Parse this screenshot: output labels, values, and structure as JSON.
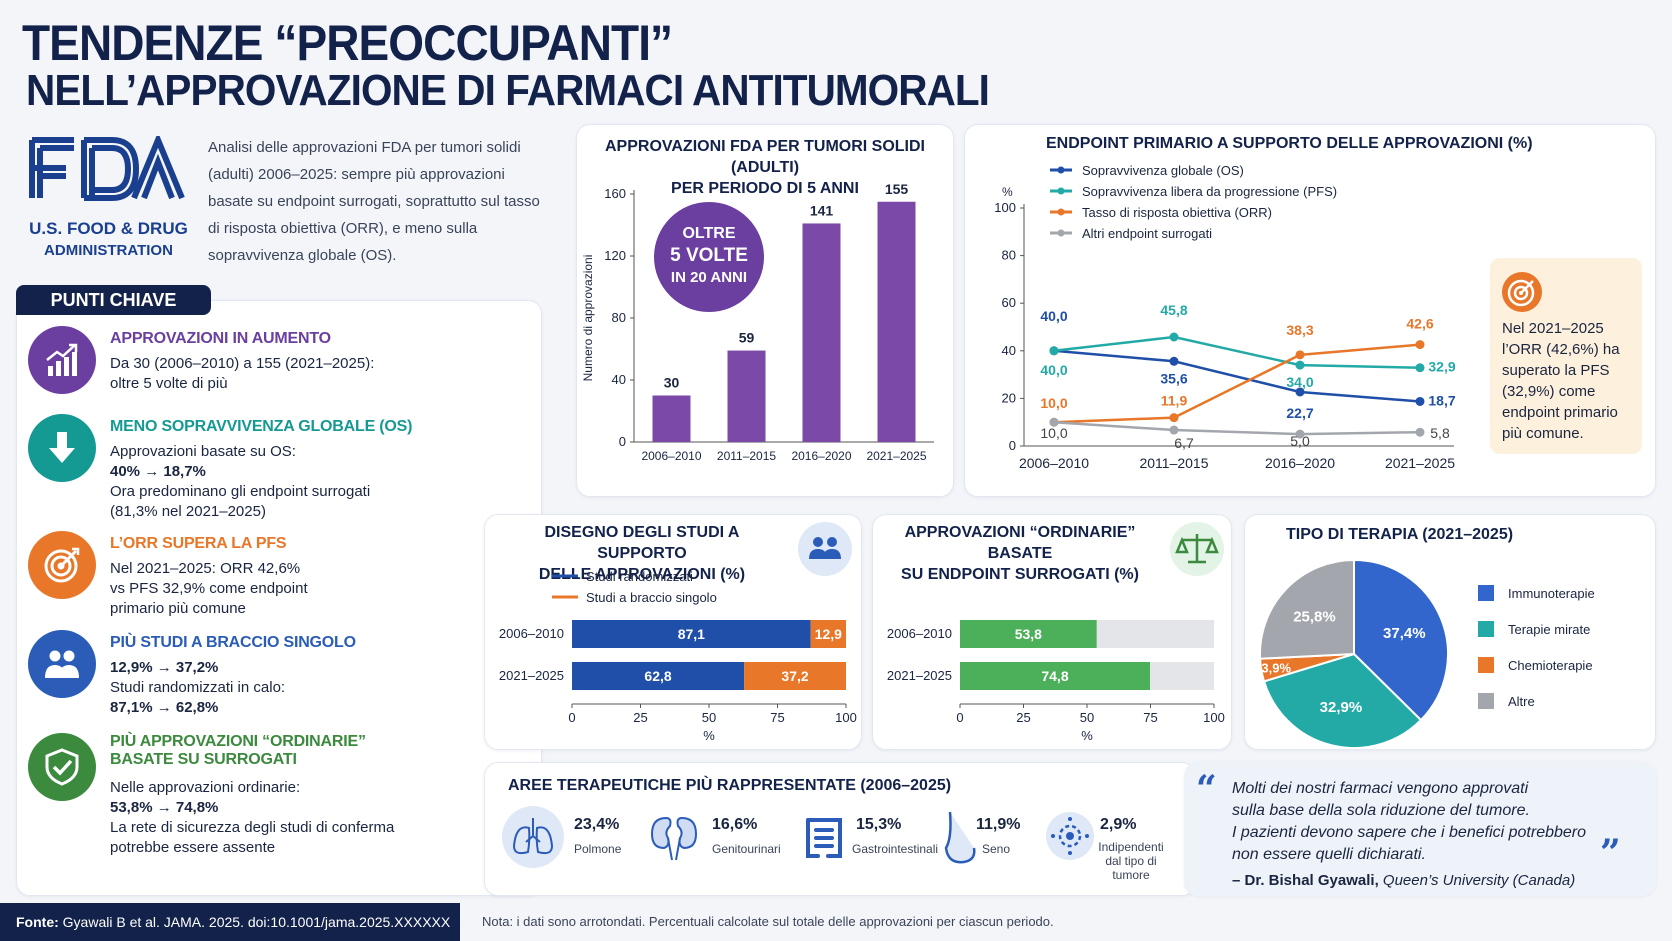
{
  "header": {
    "title_line1": "TENDENZE “PREOCCUPANTI”",
    "title_line2": "NELL’APPROVAZIONE DI FARMACI ANTITUMORALI",
    "fda_name_line1": "U.S. FOOD & DRUG",
    "fda_name_line2": "ADMINISTRATION",
    "intro": "Analisi delle approvazioni FDA per tumori solidi (adulti) 2006–2025: sempre più approvazioni basate su endpoint surrogati, soprattutto sul tasso di risposta obiettiva (ORR), e meno sulla sopravvivenza globale (OS)."
  },
  "key_points": {
    "tab": "PUNTI CHIAVE",
    "items": [
      {
        "head": "APPROVAZIONI IN AUMENTO",
        "color": "#6b3fa0",
        "line1": "Da 30 (2006–2010) a 155 (2021–2025):",
        "line2": "oltre 5 volte di più",
        "line3": "",
        "line4": "",
        "line5": ""
      },
      {
        "head": "MENO SOPRAVVIVENZA GLOBALE (OS)",
        "color": "#159a93",
        "line1": "Approvazioni basate su OS:",
        "line2": "40% → 18,7%",
        "line3": "Ora predominano gli endpoint surrogati",
        "line4": "(81,3% nel 2021–2025)",
        "line5": ""
      },
      {
        "head": "L’ORR SUPERA LA PFS",
        "color": "#e8772a",
        "line1": "Nel 2021–2025: ORR 42,6%",
        "line2": "vs PFS 32,9% come endpoint",
        "line3": "primario più comune",
        "line4": "",
        "line5": ""
      },
      {
        "head": "PIÙ STUDI A BRACCIO SINGOLO",
        "color": "#2a5cb8",
        "line1": "12,9% → 37,2%",
        "line2": "Studi randomizzati in calo:",
        "line3": "87,1% → 62,8%",
        "line4": "",
        "line5": ""
      },
      {
        "head": "PIÙ APPROVAZIONI “ORDINARIE”",
        "head2": "BASATE SU SURROGATI",
        "color": "#3b8a3e",
        "line1": "Nelle approvazioni ordinarie:",
        "line2": "53,8% → 74,8%",
        "line3": "La rete di sicurezza degli studi di conferma",
        "line4": "potrebbe essere assente",
        "line5": ""
      }
    ]
  },
  "approvals_card": {
    "title_line1": "APPROVAZIONI FDA PER TUMORI SOLIDI (ADULTI)",
    "title_line2": "PER PERIODO DI 5 ANNI",
    "badge_line1": "OLTRE",
    "badge_line2": "5 VOLTE",
    "badge_line3": "IN 20 ANNI"
  },
  "endpoint_card": {
    "title": "ENDPOINT PRIMARIO A SUPPORTO DELLE APPROVAZIONI (%)",
    "note": "Nel 2021–2025 l’ORR (42,6%) ha superato la PFS (32,9%) come endpoint primario più comune."
  },
  "design_card": {
    "title_line1": "DISEGNO DEGLI STUDI A SUPPORTO",
    "title_line2": "DELLE APPROVAZIONI (%)"
  },
  "regular_card": {
    "title_line1": "APPROVAZIONI “ORDINARIE” BASATE",
    "title_line2": "SU ENDPOINT SURROGATI (%)"
  },
  "therapy_card": {
    "title": "TIPO DI TERAPIA (2021–2025)"
  },
  "areas_card": {
    "title": "AREE TERAPEUTICHE PIÙ RAPPRESENTATE (2006–2025)",
    "items": [
      {
        "pct": "23,4%",
        "label": "Polmone",
        "icon": "lungs-icon"
      },
      {
        "pct": "16,6%",
        "label": "Genitourinari",
        "icon": "kidneys-icon"
      },
      {
        "pct": "15,3%",
        "label": "Gastrointestinali",
        "icon": "intestine-icon"
      },
      {
        "pct": "11,9%",
        "label": "Seno",
        "icon": "breast-icon"
      },
      {
        "pct": "2,9%",
        "label_line1": "Indipendenti",
        "label_line2": "dal tipo di tumore",
        "icon": "cell-icon"
      }
    ]
  },
  "quote": {
    "text_line1": "Molti dei nostri farmaci vengono approvati",
    "text_line2": "sulla base della sola riduzione del tumore.",
    "text_line3": "I pazienti devono sapere che i benefici potrebbero",
    "text_line4": "non essere quelli dichiarati.",
    "author": "– Dr. Bishal Gyawali,",
    "affiliation": "Queen’s University (Canada)"
  },
  "footer": {
    "source_label": "Fonte:",
    "source": "Gyawali B et al. JAMA. 2025. doi:10.1001/jama.2025.XXXXXX",
    "note": "Nota: i dati sono arrotondati. Percentuali calcolate sul totale delle approvazioni per ciascun periodo."
  },
  "colors": {
    "navy": "#13224a",
    "purple": "#7b4aa8",
    "os_blue": "#1f4fa8",
    "pfs_teal": "#23aaa6",
    "orr_orange": "#e8772a",
    "other_gray": "#a3a7ad",
    "green": "#4caf5a"
  },
  "chart_data": [
    {
      "type": "bar",
      "title": "APPROVAZIONI FDA PER TUMORI SOLIDI (ADULTI) PER PERIODO DI 5 ANNI",
      "categories": [
        "2006–2010",
        "2011–2015",
        "2016–2020",
        "2021–2025"
      ],
      "values": [
        30,
        59,
        141,
        155
      ],
      "ylabel": "Numero di approvazioni",
      "ylim": [
        0,
        160
      ],
      "yticks": [
        0,
        40,
        80,
        120,
        160
      ],
      "grid": false
    },
    {
      "type": "line",
      "title": "ENDPOINT PRIMARIO A SUPPORTO DELLE APPROVAZIONI (%)",
      "ylabel": "%",
      "ylim": [
        0,
        100
      ],
      "yticks": [
        0,
        20,
        40,
        60,
        80,
        100
      ],
      "categories": [
        "2006–2010",
        "2011–2015",
        "2016–2020",
        "2021–2025"
      ],
      "legend_position": "top-left",
      "series": [
        {
          "name": "Sopravvivenza globale (OS)",
          "color": "#1f4fa8",
          "values": [
            40.0,
            35.6,
            22.7,
            18.7
          ],
          "labels": [
            "40,0",
            "35,6",
            "22,7",
            "18,7"
          ]
        },
        {
          "name": "Sopravvivenza libera da progressione (PFS)",
          "color": "#23aaa6",
          "values": [
            40.0,
            45.8,
            34.0,
            32.9
          ],
          "labels": [
            "40,0",
            "45,8",
            "34,0",
            "32,9"
          ]
        },
        {
          "name": "Tasso di risposta obiettiva (ORR)",
          "color": "#e8772a",
          "values": [
            10.0,
            11.9,
            38.3,
            42.6
          ],
          "labels": [
            "10,0",
            "11,9",
            "38,3",
            "42,6"
          ]
        },
        {
          "name": "Altri endpoint surrogati",
          "color": "#a3a7ad",
          "values": [
            10.0,
            6.7,
            5.0,
            5.8
          ],
          "labels": [
            "10,0",
            "6,7",
            "5,0",
            "5,8"
          ]
        }
      ]
    },
    {
      "type": "bar",
      "orientation": "horizontal-stacked",
      "title": "DISEGNO DEGLI STUDI A SUPPORTO DELLE APPROVAZIONI (%)",
      "categories": [
        "2006–2010",
        "2021–2025"
      ],
      "xlabel": "%",
      "xlim": [
        0,
        100
      ],
      "xticks": [
        0,
        25,
        50,
        75,
        100
      ],
      "series": [
        {
          "name": "Studi randomizzati",
          "color": "#1f4fa8",
          "values": [
            87.1,
            62.8
          ],
          "labels": [
            "87,1",
            "62,8"
          ]
        },
        {
          "name": "Studi a braccio singolo",
          "color": "#e8772a",
          "values": [
            12.9,
            37.2
          ],
          "labels": [
            "12,9",
            "37,2"
          ]
        }
      ]
    },
    {
      "type": "bar",
      "orientation": "horizontal",
      "title": "APPROVAZIONI “ORDINARIE” BASATE SU ENDPOINT SURROGATI (%)",
      "categories": [
        "2006–2010",
        "2021–2025"
      ],
      "xlabel": "%",
      "xlim": [
        0,
        100
      ],
      "xticks": [
        0,
        25,
        50,
        75,
        100
      ],
      "values": [
        53.8,
        74.8
      ],
      "labels": [
        "53,8",
        "74,8"
      ],
      "color": "#4caf5a"
    },
    {
      "type": "pie",
      "title": "TIPO DI TERAPIA (2021–2025)",
      "legend_position": "right",
      "slices": [
        {
          "name": "Immunoterapie",
          "value": 37.4,
          "label": "37,4%",
          "color": "#3366cc"
        },
        {
          "name": "Terapie mirate",
          "value": 32.9,
          "label": "32,9%",
          "color": "#23aaa6"
        },
        {
          "name": "Chemioterapie",
          "value": 3.9,
          "label": "3,9%",
          "color": "#e8772a"
        },
        {
          "name": "Altre",
          "value": 25.8,
          "label": "25,8%",
          "color": "#a3a7ad"
        }
      ]
    }
  ]
}
